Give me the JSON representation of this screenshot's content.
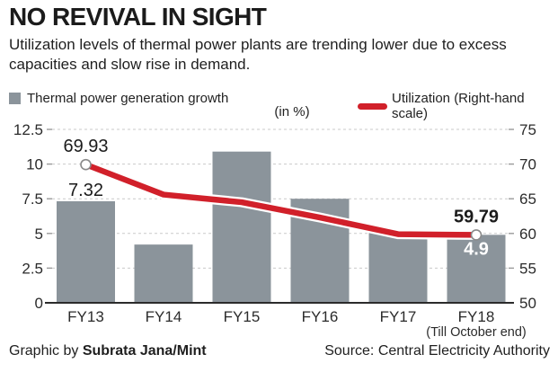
{
  "header": {
    "title": "NO REVIVAL IN SIGHT",
    "subtitle": "Utilization levels of thermal power plants are trending lower due to excess capacities and slow rise in demand."
  },
  "legend": {
    "bar_label": "Thermal power generation growth",
    "line_label": "Utilization (Right-hand scale)",
    "unit_label": "(in %)"
  },
  "chart_data": {
    "type": "bar",
    "categories": [
      "FY13",
      "FY14",
      "FY15",
      "FY16",
      "FY17",
      "FY18"
    ],
    "x_note": "(Till October end)",
    "x_note_category_index": 5,
    "series": [
      {
        "name": "Thermal power generation growth",
        "type": "bar",
        "axis": "left",
        "color": "#8b949b",
        "values": [
          7.32,
          4.2,
          10.9,
          7.5,
          5.2,
          4.9
        ]
      },
      {
        "name": "Utilization",
        "type": "line",
        "axis": "right",
        "color": "#d1202a",
        "casing_color": "#ffffff",
        "values": [
          69.93,
          65.6,
          64.5,
          62.3,
          59.9,
          59.79
        ],
        "markers": [
          0,
          5
        ],
        "marker_fill": "#ffffff",
        "marker_stroke": "#8a8a8a"
      }
    ],
    "value_labels": [
      {
        "series": 0,
        "index": 0,
        "text": "7.32",
        "placement": "above-bar",
        "bold": false,
        "color": "#1b1b1b"
      },
      {
        "series": 0,
        "index": 5,
        "text": "4.9",
        "placement": "inside-bar",
        "bold": true,
        "color": "#ffffff"
      },
      {
        "series": 1,
        "index": 0,
        "text": "69.93",
        "placement": "above-marker",
        "bold": false,
        "color": "#1b1b1b"
      },
      {
        "series": 1,
        "index": 5,
        "text": "59.79",
        "placement": "above-marker",
        "bold": true,
        "color": "#1b1b1b"
      }
    ],
    "left_axis": {
      "range": [
        0,
        12.5
      ],
      "ticks": [
        "0",
        "2.5",
        "5",
        "7.5",
        "10",
        "12.5"
      ]
    },
    "right_axis": {
      "range": [
        50,
        75
      ],
      "ticks": [
        "50",
        "55",
        "60",
        "65",
        "70",
        "75"
      ]
    },
    "grid": "dashed-horizontal",
    "grid_color": "#c9c9c9",
    "axis_text_color": "#2b2b2b",
    "baseline_color": "#2b2b2b"
  },
  "footer": {
    "credit_prefix": "Graphic by ",
    "credit_name": "Subrata Jana/Mint",
    "source": "Source: Central Electricity Authority"
  }
}
